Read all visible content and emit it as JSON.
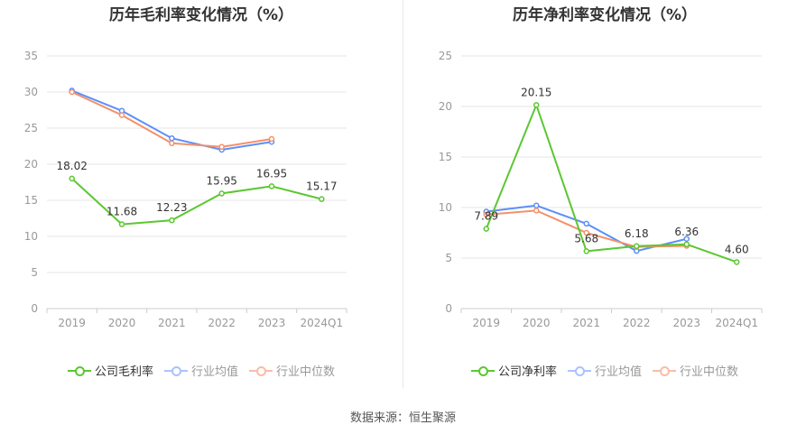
{
  "source": "数据来源：恒生聚源",
  "colors": {
    "company": "#5cc731",
    "avg": "#5b8ff9",
    "median": "#f5906b"
  },
  "chart_data": [
    {
      "type": "line",
      "title": "历年毛利率变化情况（%）",
      "categories": [
        "2019",
        "2020",
        "2021",
        "2022",
        "2023",
        "2024Q1"
      ],
      "ylim": [
        0,
        35
      ],
      "yticks": [
        0,
        5,
        10,
        15,
        20,
        25,
        30,
        35
      ],
      "grid": true,
      "legend": "bottom",
      "series": [
        {
          "name": "公司毛利率",
          "key": "company",
          "values": [
            18.02,
            11.68,
            12.23,
            15.95,
            16.95,
            15.17
          ],
          "labels": [
            "18.02",
            "11.68",
            "12.23",
            "15.95",
            "16.95",
            "15.17"
          ]
        },
        {
          "name": "行业均值",
          "key": "avg",
          "values": [
            30.2,
            27.4,
            23.6,
            22.0,
            23.1,
            null
          ]
        },
        {
          "name": "行业中位数",
          "key": "median",
          "values": [
            30.0,
            26.8,
            22.9,
            22.4,
            23.5,
            null
          ]
        }
      ]
    },
    {
      "type": "line",
      "title": "历年净利率变化情况（%）",
      "categories": [
        "2019",
        "2020",
        "2021",
        "2022",
        "2023",
        "2024Q1"
      ],
      "ylim": [
        0,
        25
      ],
      "yticks": [
        0,
        5,
        10,
        15,
        20,
        25
      ],
      "grid": true,
      "legend": "bottom",
      "series": [
        {
          "name": "公司净利率",
          "key": "company",
          "values": [
            7.89,
            20.15,
            5.68,
            6.18,
            6.36,
            4.6
          ],
          "labels": [
            "7.89",
            "20.15",
            "5.68",
            "6.18",
            "6.36",
            "4.60"
          ]
        },
        {
          "name": "行业均值",
          "key": "avg",
          "values": [
            9.6,
            10.2,
            8.4,
            5.7,
            6.9,
            null
          ]
        },
        {
          "name": "行业中位数",
          "key": "median",
          "values": [
            9.3,
            9.7,
            7.5,
            6.1,
            6.2,
            null
          ]
        }
      ]
    }
  ]
}
